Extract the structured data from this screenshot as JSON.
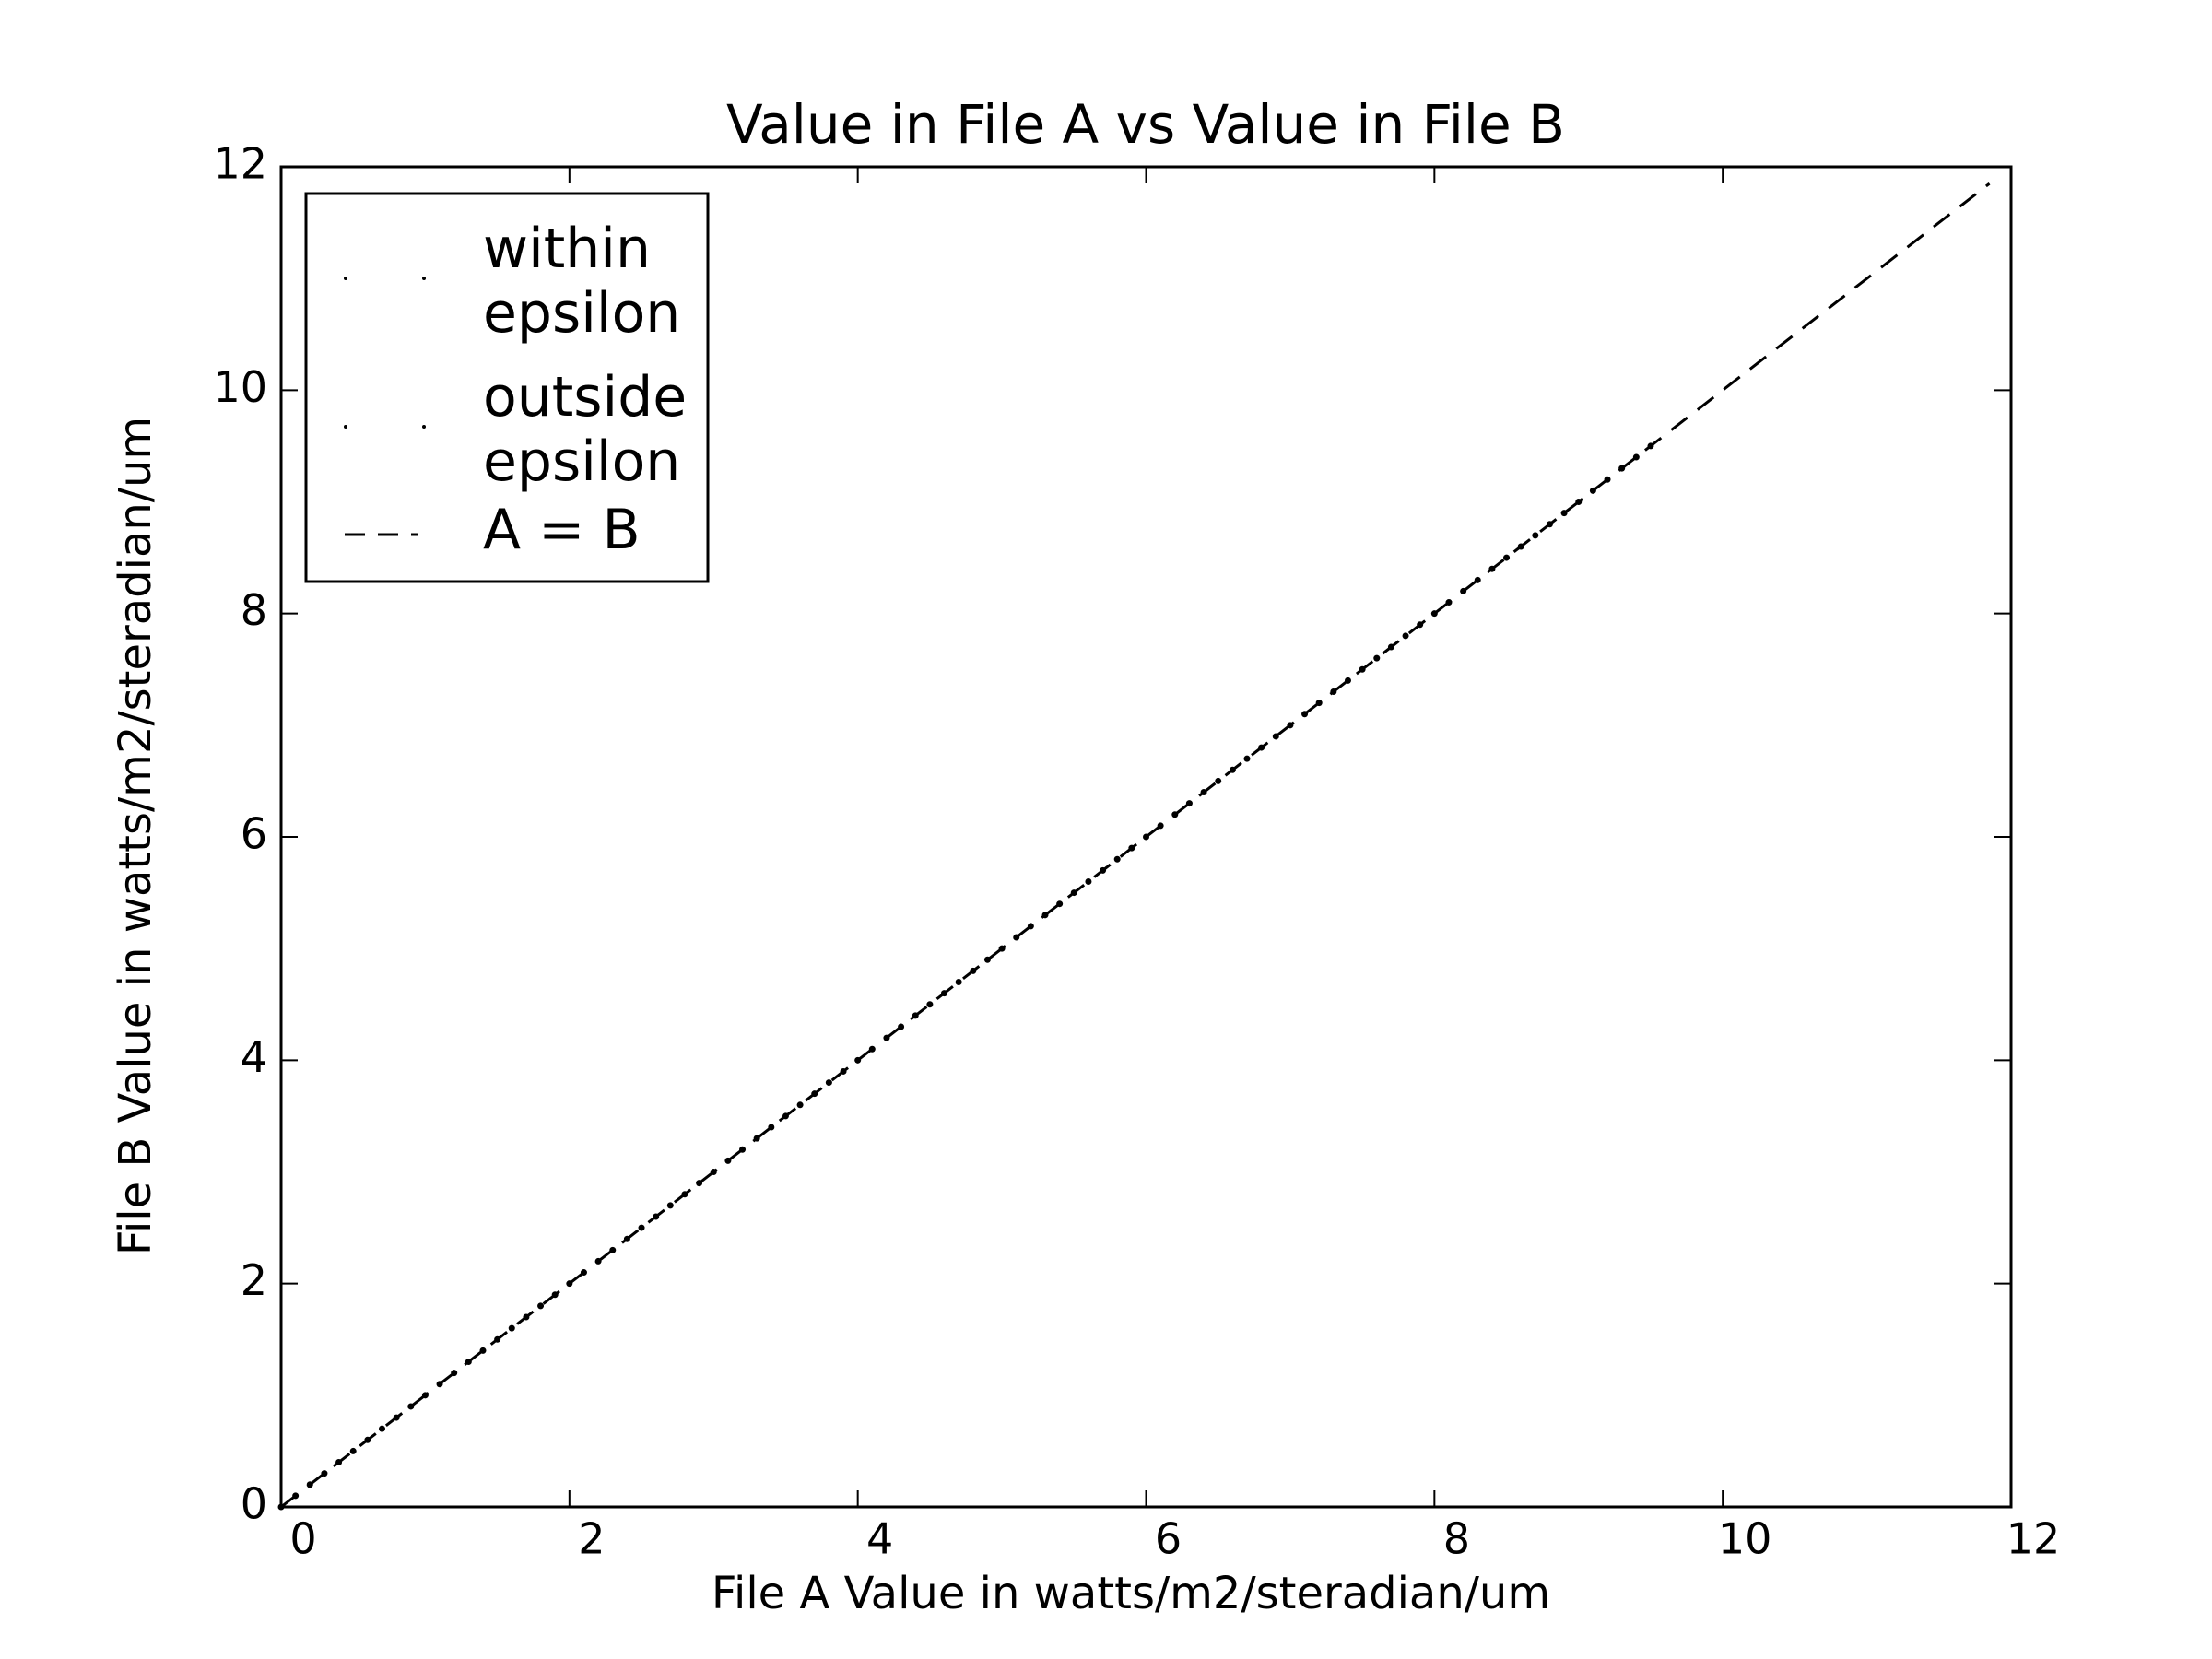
{
  "chart_data": {
    "type": "scatter",
    "title": "Value in File A vs Value in File B",
    "xlabel": "File A Value in watts/m2/steradian/um",
    "ylabel": "File B Value in watts/m2/steradian/um",
    "xlim": [
      0,
      12
    ],
    "ylim": [
      0,
      12
    ],
    "xticks": [
      0,
      2,
      4,
      6,
      8,
      10,
      12
    ],
    "yticks": [
      0,
      2,
      4,
      6,
      8,
      10,
      12
    ],
    "legend": "upper left",
    "series": [
      {
        "name": "within epsilon",
        "color": "#000000",
        "x": [
          0,
          0.1,
          0.2,
          0.3,
          0.4,
          0.5,
          0.6,
          0.7,
          0.8,
          0.9,
          1,
          1.1,
          1.2,
          1.3,
          1.4,
          1.5,
          1.6,
          1.7,
          1.8,
          1.9,
          2,
          2.1,
          2.2,
          2.3,
          2.4,
          2.5,
          2.6,
          2.7,
          2.8,
          2.9,
          3,
          3.1,
          3.2,
          3.3,
          3.4,
          3.5,
          3.6,
          3.7,
          3.8,
          3.9,
          4,
          4.1,
          4.2,
          4.3,
          4.4,
          4.5,
          4.6,
          4.7,
          4.8,
          4.9,
          5,
          5.1,
          5.2,
          5.3,
          5.4,
          5.5,
          5.6,
          5.7,
          5.8,
          5.9,
          6,
          6.1,
          6.2,
          6.3,
          6.4,
          6.5,
          6.6,
          6.7,
          6.8,
          6.9,
          7,
          7.1,
          7.2,
          7.3,
          7.4,
          7.5,
          7.6,
          7.7,
          7.8,
          7.9,
          8,
          8.1,
          8.2,
          8.3,
          8.4,
          8.5,
          8.6,
          8.7,
          8.8,
          8.9,
          9,
          9.1,
          9.2,
          9.3,
          9.4,
          9.5
        ],
        "values": [
          0,
          0.1,
          0.2,
          0.3,
          0.4,
          0.5,
          0.6,
          0.7,
          0.8,
          0.9,
          1,
          1.1,
          1.2,
          1.3,
          1.4,
          1.5,
          1.6,
          1.7,
          1.8,
          1.9,
          2,
          2.1,
          2.2,
          2.3,
          2.4,
          2.5,
          2.6,
          2.7,
          2.8,
          2.9,
          3,
          3.1,
          3.2,
          3.3,
          3.4,
          3.5,
          3.6,
          3.7,
          3.8,
          3.9,
          4,
          4.1,
          4.2,
          4.3,
          4.4,
          4.5,
          4.6,
          4.7,
          4.8,
          4.9,
          5,
          5.1,
          5.2,
          5.3,
          5.4,
          5.5,
          5.6,
          5.7,
          5.8,
          5.9,
          6,
          6.1,
          6.2,
          6.3,
          6.4,
          6.5,
          6.6,
          6.7,
          6.8,
          6.9,
          7,
          7.1,
          7.2,
          7.3,
          7.4,
          7.5,
          7.6,
          7.7,
          7.8,
          7.9,
          8,
          8.1,
          8.2,
          8.3,
          8.4,
          8.5,
          8.6,
          8.7,
          8.8,
          8.9,
          9,
          9.1,
          9.2,
          9.3,
          9.4,
          9.5
        ]
      },
      {
        "name": "outside epsilon",
        "color": "#000000",
        "x": [],
        "values": []
      },
      {
        "name": "A = B",
        "color": "#000000",
        "style": "dashed",
        "x": [
          0,
          11.85
        ],
        "values": [
          0,
          11.85
        ]
      }
    ]
  }
}
